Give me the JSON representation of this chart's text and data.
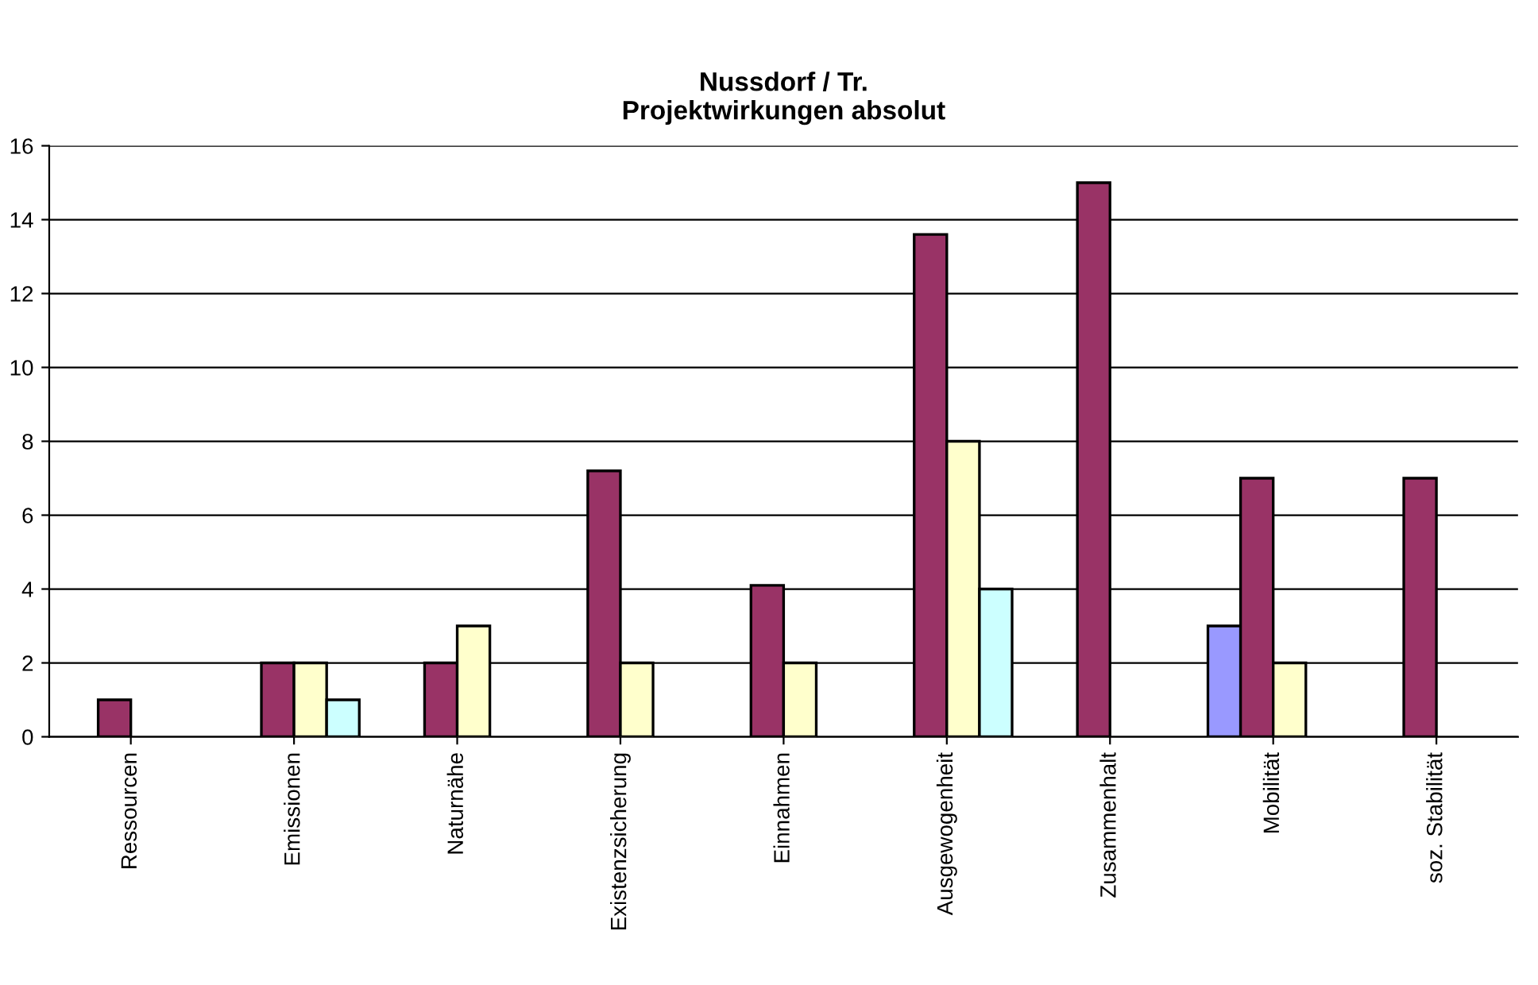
{
  "chart_data": {
    "type": "bar",
    "title": "Nussdorf / Tr.\nProjektwirkungen absolut",
    "categories": [
      "Ressourcen",
      "Emissionen",
      "Naturnähe",
      "Existenzsicherung",
      "Einnahmen",
      "Ausgewogenheit",
      "Zusammenhalt",
      "Mobilität",
      "soz. Stabilität"
    ],
    "series": [
      {
        "color": "#9999ff",
        "values": [
          null,
          null,
          null,
          null,
          null,
          null,
          null,
          3,
          null
        ]
      },
      {
        "color": "#993366",
        "values": [
          1,
          2,
          2,
          7.2,
          4.1,
          13.6,
          15,
          7,
          7
        ]
      },
      {
        "color": "#ffffcc",
        "values": [
          null,
          2,
          3,
          2,
          2,
          8,
          null,
          2,
          null
        ]
      },
      {
        "color": "#ccffff",
        "values": [
          null,
          1,
          null,
          null,
          null,
          4,
          null,
          null,
          null
        ]
      }
    ],
    "ylim": [
      0,
      16
    ],
    "yticks": [
      0,
      2,
      4,
      6,
      8,
      10,
      12,
      14,
      16
    ],
    "grid": "y",
    "legend": false
  }
}
